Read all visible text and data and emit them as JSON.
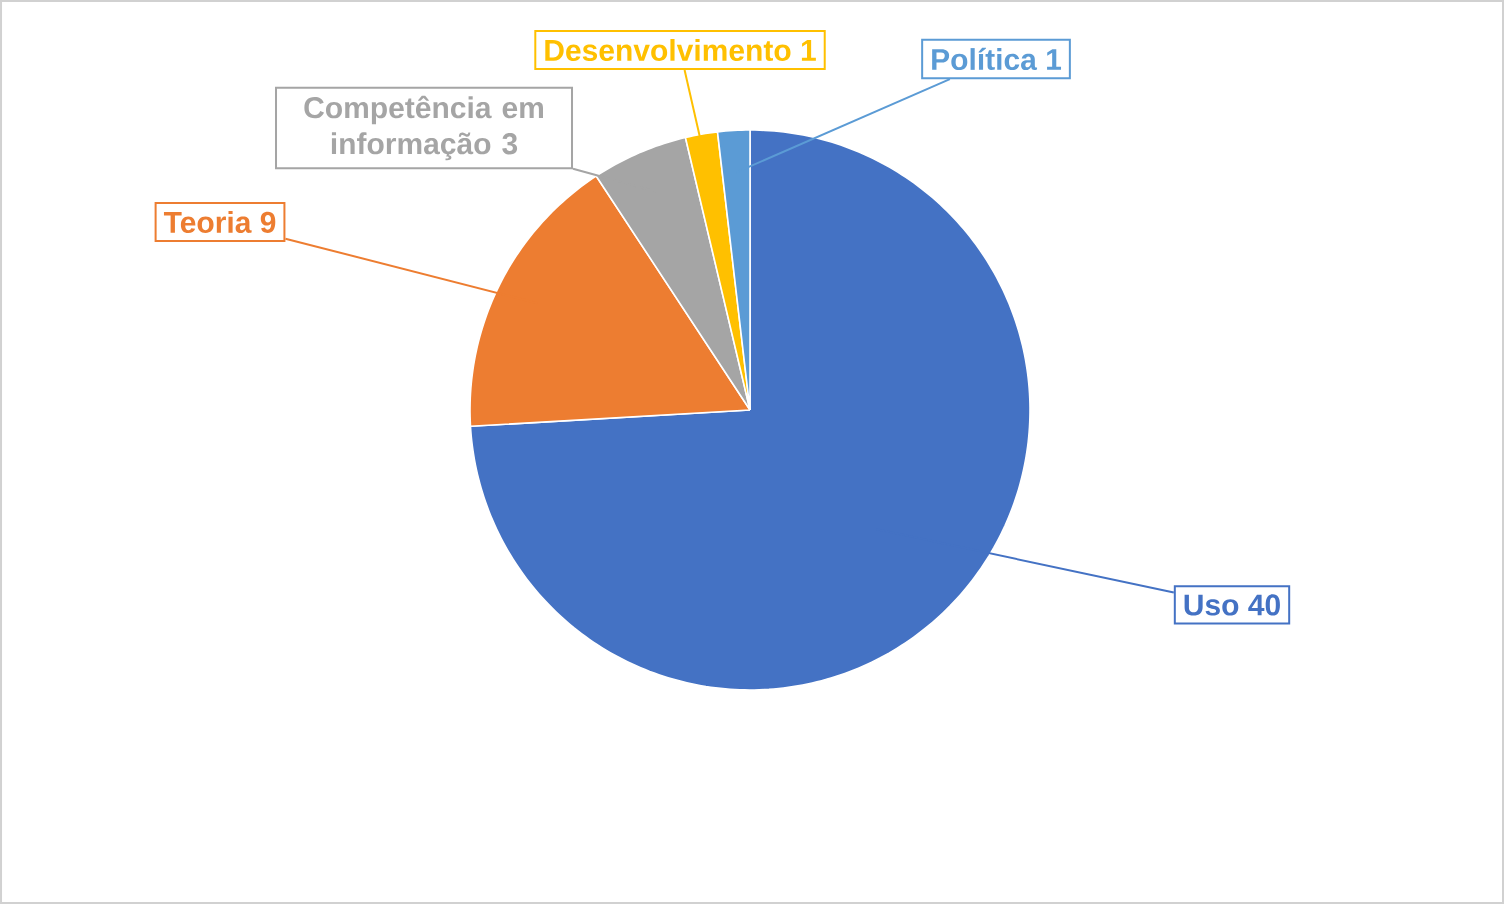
{
  "chart_data": {
    "type": "pie",
    "categories": [
      "Uso",
      "Teoria",
      "Competência em informação",
      "Desenvolvimento",
      "Política"
    ],
    "values": [
      40,
      9,
      3,
      1,
      1
    ],
    "colors": [
      "#4472c4",
      "#ed7d31",
      "#a5a5a5",
      "#ffc000",
      "#5b9bd5"
    ],
    "data_labels": true
  }
}
